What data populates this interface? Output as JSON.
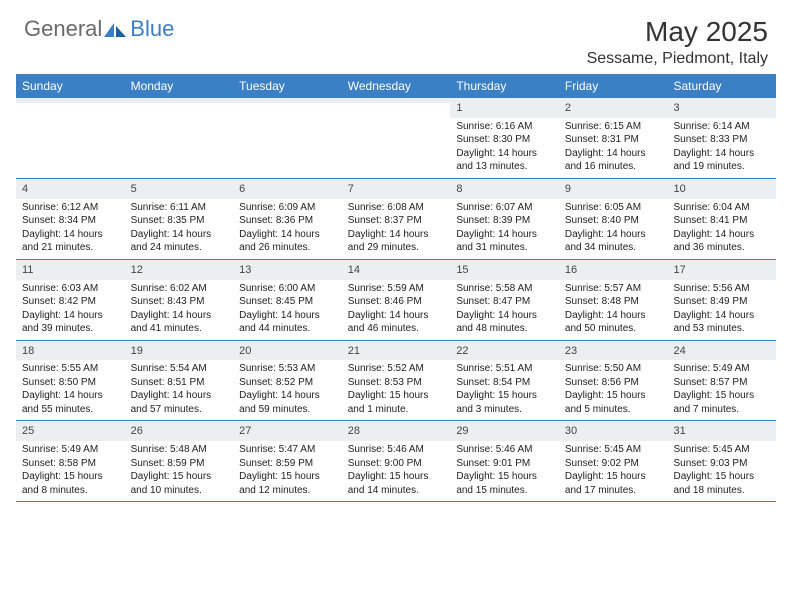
{
  "logo": {
    "text1": "General",
    "text2": "Blue"
  },
  "title": "May 2025",
  "location": "Sessame, Piedmont, Italy",
  "colors": {
    "header_bg": "#3b7fc4",
    "header_text": "#ffffff",
    "daynum_bg": "#eceff1",
    "border": "#3b7fc4",
    "text": "#222222",
    "logo_gray": "#6a6a6a",
    "logo_blue": "#3b7fc4"
  },
  "dayNames": [
    "Sunday",
    "Monday",
    "Tuesday",
    "Wednesday",
    "Thursday",
    "Friday",
    "Saturday"
  ],
  "weeks": [
    [
      {
        "num": "",
        "lines": []
      },
      {
        "num": "",
        "lines": []
      },
      {
        "num": "",
        "lines": []
      },
      {
        "num": "",
        "lines": []
      },
      {
        "num": "1",
        "lines": [
          "Sunrise: 6:16 AM",
          "Sunset: 8:30 PM",
          "Daylight: 14 hours",
          "and 13 minutes."
        ]
      },
      {
        "num": "2",
        "lines": [
          "Sunrise: 6:15 AM",
          "Sunset: 8:31 PM",
          "Daylight: 14 hours",
          "and 16 minutes."
        ]
      },
      {
        "num": "3",
        "lines": [
          "Sunrise: 6:14 AM",
          "Sunset: 8:33 PM",
          "Daylight: 14 hours",
          "and 19 minutes."
        ]
      }
    ],
    [
      {
        "num": "4",
        "lines": [
          "Sunrise: 6:12 AM",
          "Sunset: 8:34 PM",
          "Daylight: 14 hours",
          "and 21 minutes."
        ]
      },
      {
        "num": "5",
        "lines": [
          "Sunrise: 6:11 AM",
          "Sunset: 8:35 PM",
          "Daylight: 14 hours",
          "and 24 minutes."
        ]
      },
      {
        "num": "6",
        "lines": [
          "Sunrise: 6:09 AM",
          "Sunset: 8:36 PM",
          "Daylight: 14 hours",
          "and 26 minutes."
        ]
      },
      {
        "num": "7",
        "lines": [
          "Sunrise: 6:08 AM",
          "Sunset: 8:37 PM",
          "Daylight: 14 hours",
          "and 29 minutes."
        ]
      },
      {
        "num": "8",
        "lines": [
          "Sunrise: 6:07 AM",
          "Sunset: 8:39 PM",
          "Daylight: 14 hours",
          "and 31 minutes."
        ]
      },
      {
        "num": "9",
        "lines": [
          "Sunrise: 6:05 AM",
          "Sunset: 8:40 PM",
          "Daylight: 14 hours",
          "and 34 minutes."
        ]
      },
      {
        "num": "10",
        "lines": [
          "Sunrise: 6:04 AM",
          "Sunset: 8:41 PM",
          "Daylight: 14 hours",
          "and 36 minutes."
        ]
      }
    ],
    [
      {
        "num": "11",
        "lines": [
          "Sunrise: 6:03 AM",
          "Sunset: 8:42 PM",
          "Daylight: 14 hours",
          "and 39 minutes."
        ]
      },
      {
        "num": "12",
        "lines": [
          "Sunrise: 6:02 AM",
          "Sunset: 8:43 PM",
          "Daylight: 14 hours",
          "and 41 minutes."
        ]
      },
      {
        "num": "13",
        "lines": [
          "Sunrise: 6:00 AM",
          "Sunset: 8:45 PM",
          "Daylight: 14 hours",
          "and 44 minutes."
        ]
      },
      {
        "num": "14",
        "lines": [
          "Sunrise: 5:59 AM",
          "Sunset: 8:46 PM",
          "Daylight: 14 hours",
          "and 46 minutes."
        ]
      },
      {
        "num": "15",
        "lines": [
          "Sunrise: 5:58 AM",
          "Sunset: 8:47 PM",
          "Daylight: 14 hours",
          "and 48 minutes."
        ]
      },
      {
        "num": "16",
        "lines": [
          "Sunrise: 5:57 AM",
          "Sunset: 8:48 PM",
          "Daylight: 14 hours",
          "and 50 minutes."
        ]
      },
      {
        "num": "17",
        "lines": [
          "Sunrise: 5:56 AM",
          "Sunset: 8:49 PM",
          "Daylight: 14 hours",
          "and 53 minutes."
        ]
      }
    ],
    [
      {
        "num": "18",
        "lines": [
          "Sunrise: 5:55 AM",
          "Sunset: 8:50 PM",
          "Daylight: 14 hours",
          "and 55 minutes."
        ]
      },
      {
        "num": "19",
        "lines": [
          "Sunrise: 5:54 AM",
          "Sunset: 8:51 PM",
          "Daylight: 14 hours",
          "and 57 minutes."
        ]
      },
      {
        "num": "20",
        "lines": [
          "Sunrise: 5:53 AM",
          "Sunset: 8:52 PM",
          "Daylight: 14 hours",
          "and 59 minutes."
        ]
      },
      {
        "num": "21",
        "lines": [
          "Sunrise: 5:52 AM",
          "Sunset: 8:53 PM",
          "Daylight: 15 hours",
          "and 1 minute."
        ]
      },
      {
        "num": "22",
        "lines": [
          "Sunrise: 5:51 AM",
          "Sunset: 8:54 PM",
          "Daylight: 15 hours",
          "and 3 minutes."
        ]
      },
      {
        "num": "23",
        "lines": [
          "Sunrise: 5:50 AM",
          "Sunset: 8:56 PM",
          "Daylight: 15 hours",
          "and 5 minutes."
        ]
      },
      {
        "num": "24",
        "lines": [
          "Sunrise: 5:49 AM",
          "Sunset: 8:57 PM",
          "Daylight: 15 hours",
          "and 7 minutes."
        ]
      }
    ],
    [
      {
        "num": "25",
        "lines": [
          "Sunrise: 5:49 AM",
          "Sunset: 8:58 PM",
          "Daylight: 15 hours",
          "and 8 minutes."
        ]
      },
      {
        "num": "26",
        "lines": [
          "Sunrise: 5:48 AM",
          "Sunset: 8:59 PM",
          "Daylight: 15 hours",
          "and 10 minutes."
        ]
      },
      {
        "num": "27",
        "lines": [
          "Sunrise: 5:47 AM",
          "Sunset: 8:59 PM",
          "Daylight: 15 hours",
          "and 12 minutes."
        ]
      },
      {
        "num": "28",
        "lines": [
          "Sunrise: 5:46 AM",
          "Sunset: 9:00 PM",
          "Daylight: 15 hours",
          "and 14 minutes."
        ]
      },
      {
        "num": "29",
        "lines": [
          "Sunrise: 5:46 AM",
          "Sunset: 9:01 PM",
          "Daylight: 15 hours",
          "and 15 minutes."
        ]
      },
      {
        "num": "30",
        "lines": [
          "Sunrise: 5:45 AM",
          "Sunset: 9:02 PM",
          "Daylight: 15 hours",
          "and 17 minutes."
        ]
      },
      {
        "num": "31",
        "lines": [
          "Sunrise: 5:45 AM",
          "Sunset: 9:03 PM",
          "Daylight: 15 hours",
          "and 18 minutes."
        ]
      }
    ]
  ]
}
